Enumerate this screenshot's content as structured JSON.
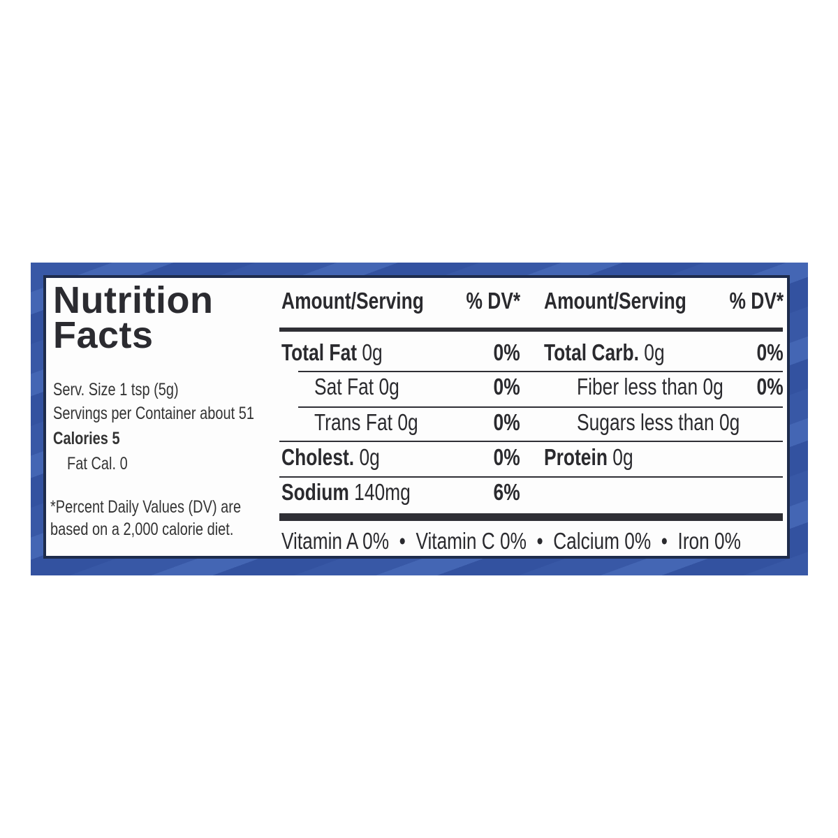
{
  "title_line1": "Nutrition",
  "title_line2": "Facts",
  "serving_size": "Serv. Size 1 tsp (5g)",
  "servings_per_container": "Servings per Container about 51",
  "calories": "Calories 5",
  "fat_calories": "Fat Cal. 0",
  "footnote_line1": "*Percent Daily Values (DV) are",
  "footnote_line2": "based on a 2,000 calorie diet.",
  "header": {
    "amount_left": "Amount/Serving",
    "dv_left": "% DV*",
    "amount_right": "Amount/Serving",
    "dv_right": "% DV*"
  },
  "left_rows": [
    {
      "label": "Total Fat",
      "amount": "0g",
      "dv": "0%"
    },
    {
      "label": "Sat Fat",
      "amount": "0g",
      "dv": "0%"
    },
    {
      "label": "Trans Fat",
      "amount": "0g",
      "dv": "0%"
    },
    {
      "label": "Cholest.",
      "amount": "0g",
      "dv": "0%"
    },
    {
      "label": "Sodium",
      "amount": "140mg",
      "dv": "6%"
    }
  ],
  "right_rows": [
    {
      "label": "Total Carb.",
      "amount": "0g",
      "dv": "0%"
    },
    {
      "label": "Fiber less than",
      "amount": "0g",
      "dv": "0%"
    },
    {
      "label": "Sugars less than",
      "amount": "0g",
      "dv": ""
    },
    {
      "label": "Protein",
      "amount": "0g",
      "dv": ""
    }
  ],
  "vitamins": "Vitamin A 0%  •  Vitamin C 0%  •  Calcium 0%  •  Iron 0%",
  "colors": {
    "background_pattern": "#3858a6",
    "border": "#1e2c4c",
    "text": "#2a2a2e"
  }
}
